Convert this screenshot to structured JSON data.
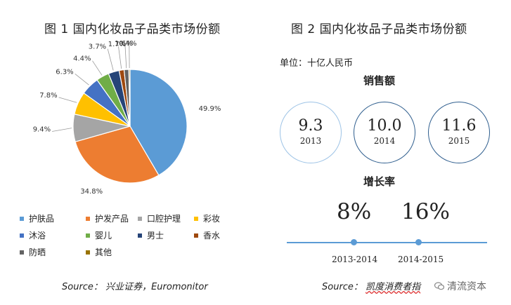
{
  "left_panel": {
    "title": "图 1 国内化妆品子品类市场份额",
    "source": "Source： 兴业证券，Euromonitor"
  },
  "right_panel": {
    "title": "图 2 国内化妆品子品类市场份额",
    "unit": "单位：十亿人民币",
    "sales_label": "销售额",
    "sales": [
      {
        "value": "9.3",
        "year": "2013"
      },
      {
        "value": "10.0",
        "year": "2014"
      },
      {
        "value": "11.6",
        "year": "2015"
      }
    ],
    "growth_label": "增长率",
    "growth": [
      {
        "value": "8%",
        "period": "2013-2014"
      },
      {
        "value": "16%",
        "period": "2014-2015"
      }
    ],
    "source_prefix": "Source： ",
    "source_name": "凯度消费者指",
    "watermark": "清流资本"
  },
  "chart_data": [
    {
      "type": "pie",
      "title": "图 1 国内化妆品子品类市场份额",
      "categories": [
        "护肤品",
        "护发产品",
        "口腔护理",
        "彩妆",
        "沐浴",
        "婴儿",
        "男士",
        "香水",
        "防晒",
        "其他"
      ],
      "values": [
        49.9,
        34.8,
        9.4,
        7.8,
        6.3,
        4.4,
        3.7,
        1.7,
        1.6,
        0.4
      ],
      "labels": [
        "49.9%",
        "34.8%",
        "9.4%",
        "7.8%",
        "6.3%",
        "4.4%",
        "3.7%",
        "1.7%",
        "1.6%",
        "0.4%"
      ],
      "colors": [
        "#5b9bd5",
        "#ed7d31",
        "#a5a5a5",
        "#ffc000",
        "#4472c4",
        "#70ad47",
        "#264478",
        "#9e480e",
        "#636363",
        "#997300"
      ],
      "legend_position": "bottom"
    },
    {
      "type": "table",
      "title": "图 2 国内化妆品子品类市场份额",
      "unit": "单位：十亿人民币",
      "sales": {
        "years": [
          "2013",
          "2014",
          "2015"
        ],
        "values": [
          9.3,
          10.0,
          11.6
        ]
      },
      "growth": {
        "periods": [
          "2013-2014",
          "2014-2015"
        ],
        "values": [
          "8%",
          "16%"
        ]
      }
    }
  ]
}
